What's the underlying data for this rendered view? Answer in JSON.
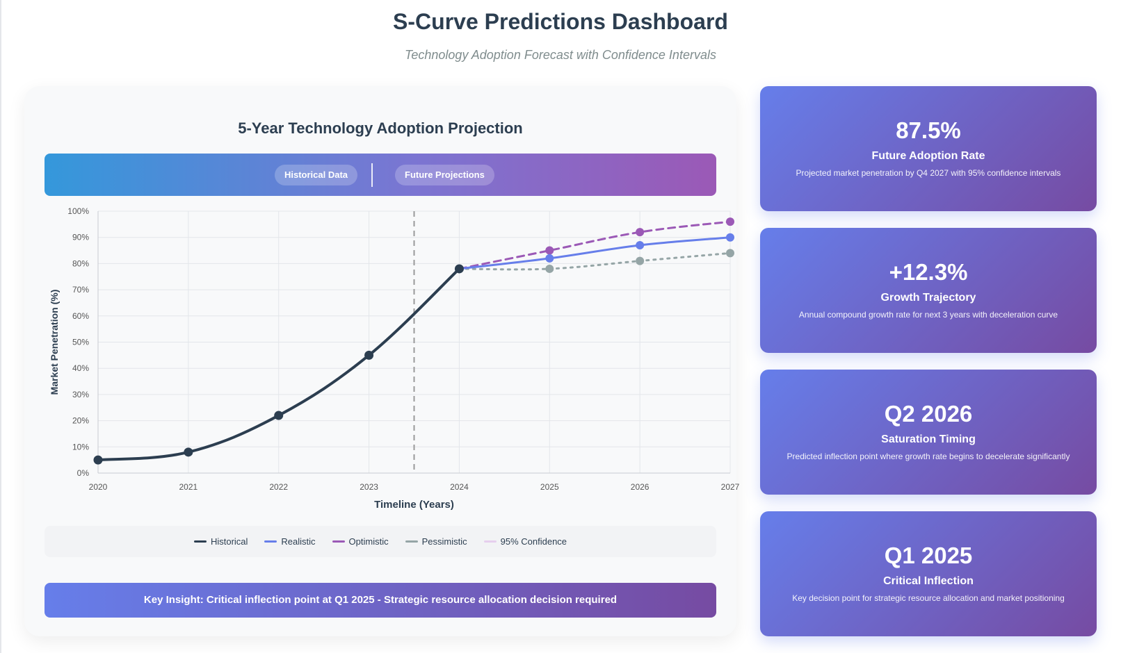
{
  "page": {
    "title": "S-Curve Predictions Dashboard",
    "subtitle": "Technology Adoption Forecast with Confidence Intervals"
  },
  "chart_panel": {
    "title": "5-Year Technology Adoption Projection",
    "phase_labels": {
      "historical": "Historical Data",
      "future": "Future Projections"
    },
    "insight": "Key Insight: Critical inflection point at Q1 2025 - Strategic resource allocation decision required"
  },
  "colors": {
    "historical": "#2c3e50",
    "realistic": "#667eea",
    "optimistic": "#9b59b6",
    "pessimistic": "#95a5a6",
    "confidence": "#e6cfee",
    "card_gradient_start": "#667eea",
    "card_gradient_end": "#764ba2"
  },
  "chart_data": {
    "type": "line",
    "title": "5-Year Technology Adoption Projection",
    "xlabel": "Timeline (Years)",
    "ylabel": "Market Penetration (%)",
    "x": [
      "2020",
      "2021",
      "2022",
      "2023",
      "2024",
      "2025",
      "2026",
      "2027"
    ],
    "ylim": [
      0,
      100
    ],
    "yticks": [
      0,
      10,
      20,
      30,
      40,
      50,
      60,
      70,
      80,
      90,
      100
    ],
    "ytick_suffix": "%",
    "divider_x": 2023.5,
    "grid": true,
    "legend_position": "bottom",
    "series": [
      {
        "name": "Historical",
        "key": "historical",
        "style": "solid",
        "x": [
          2020,
          2021,
          2022,
          2023,
          2024
        ],
        "values": [
          5,
          8,
          22,
          45,
          78
        ]
      },
      {
        "name": "Realistic",
        "key": "realistic",
        "style": "solid",
        "x": [
          2024,
          2025,
          2026,
          2027
        ],
        "values": [
          78,
          82,
          87,
          90
        ]
      },
      {
        "name": "Optimistic",
        "key": "optimistic",
        "style": "dashed",
        "x": [
          2024,
          2025,
          2026,
          2027
        ],
        "values": [
          78,
          85,
          92,
          96
        ]
      },
      {
        "name": "Pessimistic",
        "key": "pessimistic",
        "style": "dotted",
        "x": [
          2024,
          2025,
          2026,
          2027
        ],
        "values": [
          78,
          78,
          81,
          84
        ]
      },
      {
        "name": "95% Confidence",
        "key": "confidence",
        "style": "band",
        "x": [],
        "values": []
      }
    ]
  },
  "metrics": [
    {
      "value": "87.5%",
      "label": "Future Adoption Rate",
      "desc": "Projected market penetration by Q4 2027 with 95% confidence intervals"
    },
    {
      "value": "+12.3%",
      "label": "Growth Trajectory",
      "desc": "Annual compound growth rate for next 3 years with deceleration curve"
    },
    {
      "value": "Q2 2026",
      "label": "Saturation Timing",
      "desc": "Predicted inflection point where growth rate begins to decelerate significantly"
    },
    {
      "value": "Q1 2025",
      "label": "Critical Inflection",
      "desc": "Key decision point for strategic resource allocation and market positioning"
    }
  ]
}
